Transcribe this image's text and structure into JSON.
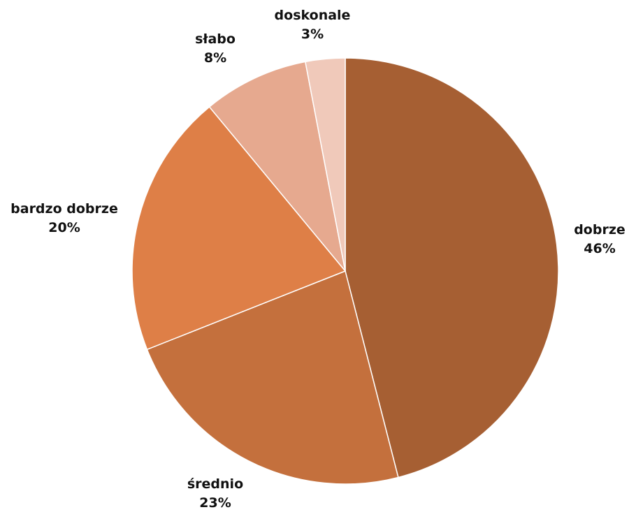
{
  "chart_data": {
    "type": "pie",
    "title": "",
    "slices": [
      {
        "label": "dobrze",
        "value": 46,
        "value_label": "46%",
        "color": "#A65F33"
      },
      {
        "label": "średnio",
        "value": 23,
        "value_label": "23%",
        "color": "#C4703D"
      },
      {
        "label": "bardzo dobrze",
        "value": 20,
        "value_label": "20%",
        "color": "#DE7F47"
      },
      {
        "label": "słabo",
        "value": 8,
        "value_label": "8%",
        "color": "#E6A98F"
      },
      {
        "label": "doskonale",
        "value": 3,
        "value_label": "3%",
        "color": "#F0C9BA"
      }
    ],
    "start_angle_deg": 0,
    "direction": "clockwise",
    "legend": "none"
  }
}
